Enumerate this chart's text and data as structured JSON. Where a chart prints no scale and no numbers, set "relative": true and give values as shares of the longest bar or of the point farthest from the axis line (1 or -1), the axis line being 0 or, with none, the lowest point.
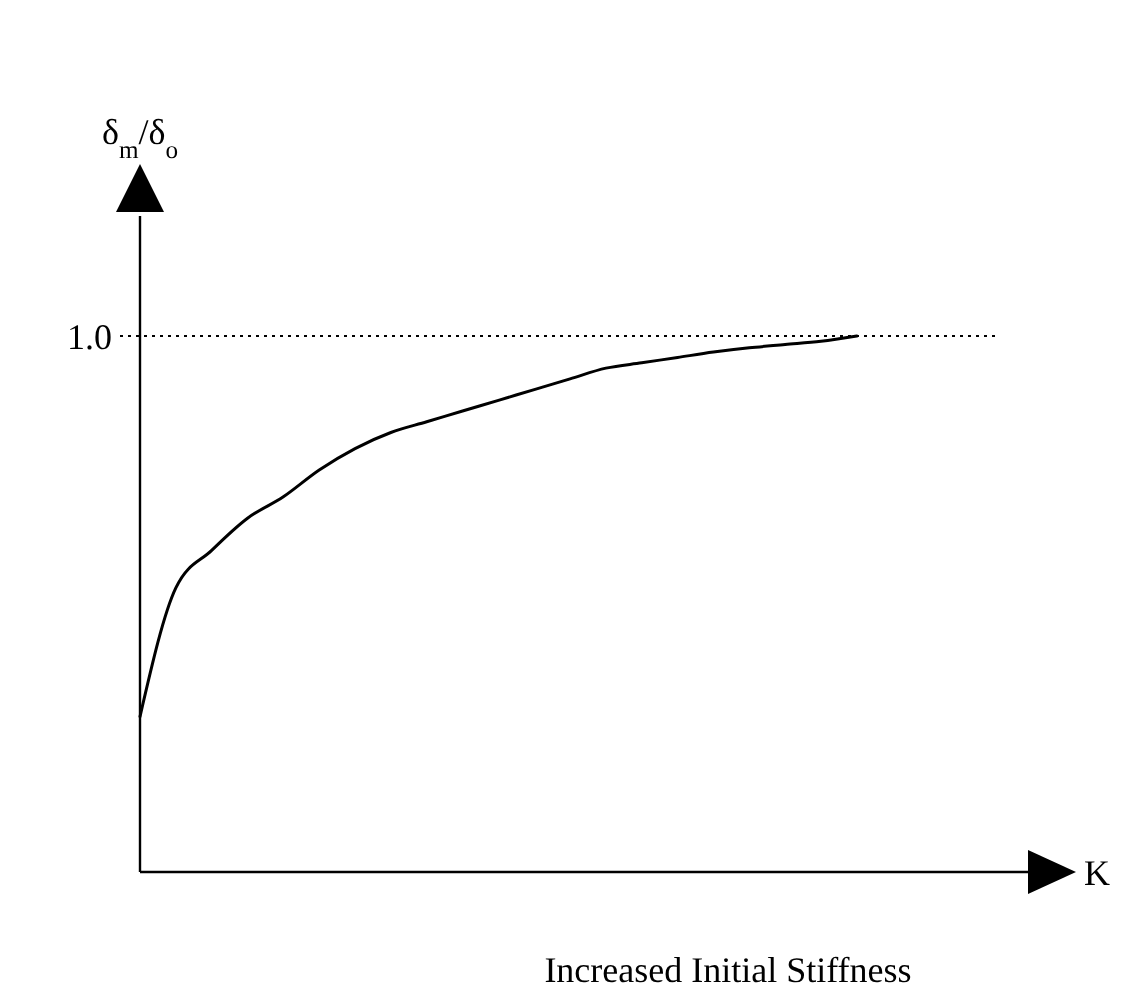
{
  "chart_data": {
    "type": "line",
    "relative": true,
    "ylabel": "δ$_{m}$/δ$_{o}$",
    "xlabel": "Increased Initial Stiffness",
    "annotations": [
      "K"
    ],
    "categories": [
      null,
      null,
      null,
      null,
      null,
      null,
      null,
      null,
      null,
      null,
      null,
      null,
      null,
      null,
      null,
      null,
      null,
      null,
      null,
      null,
      null,
      null,
      null,
      null,
      null,
      null
    ],
    "series": [
      {
        "color": "#000000",
        "values": [
          0.29,
          0.53,
          0.6,
          0.66,
          0.7,
          0.75,
          0.79,
          0.82,
          0.84,
          0.86,
          0.88,
          0.9,
          0.92,
          0.94,
          0.95,
          0.96,
          0.97,
          0.978,
          0.984,
          0.99,
          1,
          null,
          null,
          null,
          null,
          null
        ]
      }
    ],
    "ref_lines": [
      {
        "axis": "y",
        "value": 1,
        "label": "1.0",
        "color": "#000000",
        "line_style": "dotted"
      }
    ],
    "marker": "none",
    "line_style": "solid"
  }
}
